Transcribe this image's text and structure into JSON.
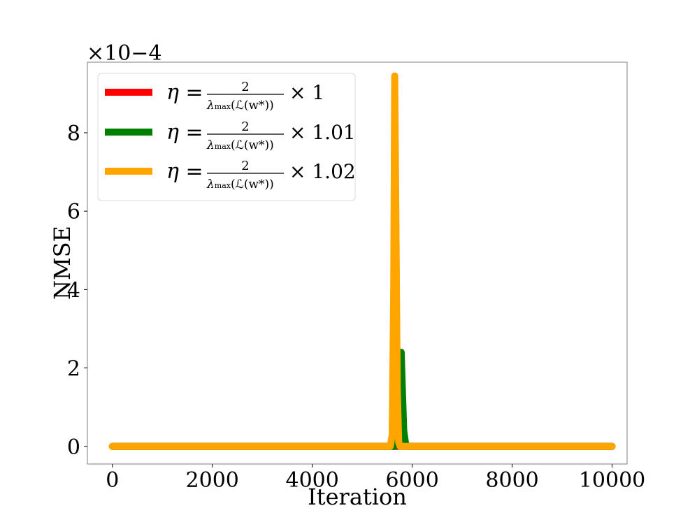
{
  "chart_data": {
    "type": "line",
    "xlabel": "Iteration",
    "ylabel": "NMSE",
    "y_multiplier_label": "×10−4",
    "xlim": [
      -500,
      10300
    ],
    "ylim": [
      -0.45,
      9.8
    ],
    "xticks": [
      0,
      2000,
      4000,
      6000,
      8000,
      10000
    ],
    "xtick_labels": [
      "0",
      "2000",
      "4000",
      "6000",
      "8000",
      "10000"
    ],
    "yticks": [
      0,
      2,
      4,
      6,
      8
    ],
    "ytick_labels": [
      "0",
      "2",
      "4",
      "6",
      "8"
    ],
    "grid": false,
    "legend_position": "top-left",
    "series": [
      {
        "name": "η = 2/λmax(ℒ(w*)) × 1",
        "legend": {
          "eta": "η",
          "num": "2",
          "lam": "λ",
          "sub": "max",
          "arg": "(ℒ(w*))",
          "factor": "× 1"
        },
        "color": "#ff0000",
        "x": [
          0,
          10000
        ],
        "y": [
          0,
          0
        ]
      },
      {
        "name": "η = 2/λmax(ℒ(w*)) × 1.01",
        "legend": {
          "eta": "η",
          "num": "2",
          "lam": "λ",
          "sub": "max",
          "arg": "(ℒ(w*))",
          "factor": "× 1.01"
        },
        "color": "#008000",
        "x": [
          0,
          5650,
          5700,
          5720,
          5760,
          5780,
          5800,
          5830,
          5870,
          5920,
          10000
        ],
        "y": [
          0,
          0,
          0.1,
          1.2,
          2.4,
          2.4,
          1.6,
          0.4,
          0.05,
          0,
          0
        ]
      },
      {
        "name": "η = 2/λmax(ℒ(w*)) × 1.02",
        "legend": {
          "eta": "η",
          "num": "2",
          "lam": "λ",
          "sub": "max",
          "arg": "(ℒ(w*))",
          "factor": "× 1.02"
        },
        "color": "#ffa500",
        "x": [
          0,
          5560,
          5600,
          5630,
          5650,
          5670,
          5700,
          5730,
          5760,
          10000
        ],
        "y": [
          0,
          0,
          0.3,
          4.0,
          9.45,
          6.5,
          1.5,
          0.1,
          0,
          0
        ]
      }
    ]
  }
}
